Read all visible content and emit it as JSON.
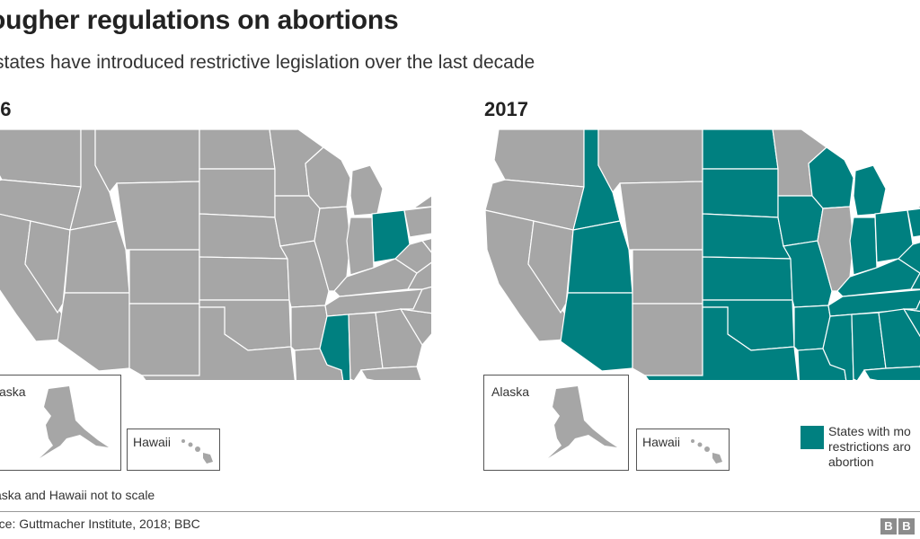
{
  "header": {
    "title": "ougher regulations on abortions",
    "subtitle": "states have introduced restrictive legislation over the last decade"
  },
  "colors": {
    "restricted": "#008080",
    "other": "#a6a6a6",
    "border": "#ffffff"
  },
  "maps": [
    {
      "year": "06",
      "restricted": [
        "ohio",
        "mississippi"
      ],
      "alaska_label": "aska",
      "hawaii_label": "Hawaii"
    },
    {
      "year": "2017",
      "restricted": [
        "idaho",
        "utah",
        "arizona",
        "north-dakota",
        "south-dakota",
        "nebraska",
        "kansas",
        "oklahoma",
        "texas",
        "iowa",
        "missouri",
        "arkansas",
        "louisiana",
        "wisconsin",
        "michigan",
        "indiana",
        "ohio",
        "kentucky",
        "tennessee",
        "mississippi",
        "alabama",
        "georgia",
        "florida",
        "south-carolina",
        "north-carolina",
        "virginia",
        "west-virginia",
        "pennsylvania"
      ],
      "alaska_label": "Alaska",
      "hawaii_label": "Hawaii"
    }
  ],
  "legend": {
    "label": "States with mo restrictions aro abortion"
  },
  "footer": {
    "note": "aska and Hawaii not to scale",
    "source": "rce: Guttmacher Institute, 2018; BBC",
    "logo": [
      "B",
      "B"
    ]
  }
}
